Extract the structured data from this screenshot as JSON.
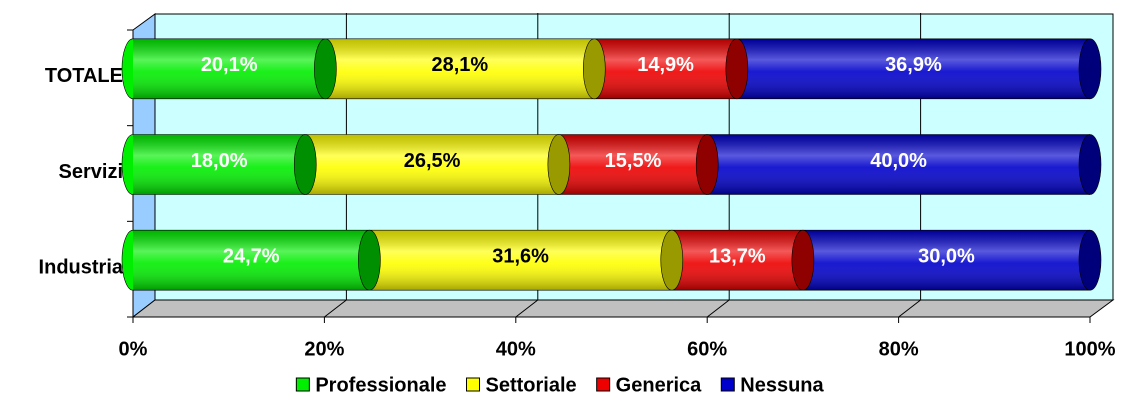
{
  "chart_data": {
    "type": "bar",
    "orientation": "horizontal",
    "stacked": true,
    "categories": [
      "TOTALE",
      "Servizi",
      "Industria"
    ],
    "series": [
      {
        "name": "Professionale",
        "color": "#00ee00",
        "values": [
          20.1,
          18.0,
          24.7
        ],
        "value_labels": [
          "20,1%",
          "18,0%",
          "24,7%"
        ]
      },
      {
        "name": "Settoriale",
        "color": "#ffff00",
        "values": [
          28.1,
          26.5,
          31.6
        ],
        "value_labels": [
          "28,1%",
          "26,5%",
          "31,6%"
        ]
      },
      {
        "name": "Generica",
        "color": "#ee0000",
        "values": [
          14.9,
          15.5,
          13.7
        ],
        "value_labels": [
          "14,9%",
          "15,5%",
          "13,7%"
        ]
      },
      {
        "name": "Nessuna",
        "color": "#0000cc",
        "values": [
          36.9,
          40.0,
          30.0
        ],
        "value_labels": [
          "36,9%",
          "40,0%",
          "30,0%"
        ]
      }
    ],
    "xlim": [
      0,
      100
    ],
    "xticks": [
      {
        "value": 0,
        "label": "0%"
      },
      {
        "value": 20,
        "label": "20%"
      },
      {
        "value": 40,
        "label": "40%"
      },
      {
        "value": 60,
        "label": "60%"
      },
      {
        "value": 80,
        "label": "80%"
      },
      {
        "value": 100,
        "label": "100%"
      }
    ],
    "grid": true,
    "legend": "bottom"
  }
}
